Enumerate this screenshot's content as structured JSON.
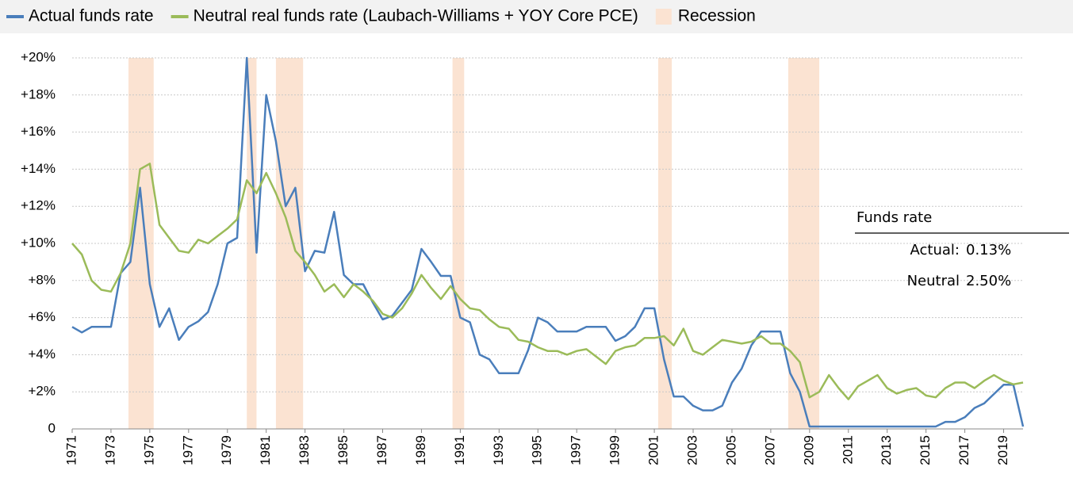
{
  "chart_data": {
    "type": "line",
    "x": [
      1971,
      1971.5,
      1972,
      1972.5,
      1973,
      1973.5,
      1974,
      1974.5,
      1975,
      1975.5,
      1976,
      1976.5,
      1977,
      1977.5,
      1978,
      1978.5,
      1979,
      1979.5,
      1980,
      1980.5,
      1981,
      1981.5,
      1982,
      1982.5,
      1983,
      1983.5,
      1984,
      1984.5,
      1985,
      1985.5,
      1986,
      1986.5,
      1987,
      1987.5,
      1988,
      1988.5,
      1989,
      1989.5,
      1990,
      1990.5,
      1991,
      1991.5,
      1992,
      1992.5,
      1993,
      1993.5,
      1994,
      1994.5,
      1995,
      1995.5,
      1996,
      1996.5,
      1997,
      1997.5,
      1998,
      1998.5,
      1999,
      1999.5,
      2000,
      2000.5,
      2001,
      2001.5,
      2002,
      2002.5,
      2003,
      2003.5,
      2004,
      2004.5,
      2005,
      2005.5,
      2006,
      2006.5,
      2007,
      2007.5,
      2008,
      2008.5,
      2009,
      2009.5,
      2010,
      2010.5,
      2011,
      2011.5,
      2012,
      2012.5,
      2013,
      2013.5,
      2014,
      2014.5,
      2015,
      2015.5,
      2016,
      2016.5,
      2017,
      2017.5,
      2018,
      2018.5,
      2019,
      2019.5,
      2020
    ],
    "series": [
      {
        "name": "Actual funds rate",
        "color": "#4a7ebb",
        "values": [
          5.5,
          5.2,
          5.5,
          5.5,
          5.5,
          8.4,
          9.0,
          13.0,
          7.8,
          5.5,
          6.5,
          4.8,
          5.5,
          5.8,
          6.3,
          7.8,
          10.0,
          10.3,
          20.0,
          9.5,
          18.0,
          15.5,
          12.0,
          13.0,
          8.5,
          9.6,
          9.5,
          11.7,
          8.3,
          7.8,
          7.8,
          6.8,
          5.9,
          6.1,
          6.8,
          7.5,
          9.7,
          9.0,
          8.25,
          8.25,
          6.0,
          5.75,
          4.0,
          3.75,
          3.0,
          3.0,
          3.0,
          4.25,
          6.0,
          5.75,
          5.25,
          5.25,
          5.25,
          5.5,
          5.5,
          5.5,
          4.75,
          5.0,
          5.5,
          6.5,
          6.5,
          3.75,
          1.75,
          1.75,
          1.25,
          1.0,
          1.0,
          1.25,
          2.5,
          3.25,
          4.5,
          5.25,
          5.25,
          5.25,
          3.0,
          2.0,
          0.13,
          0.13,
          0.13,
          0.13,
          0.13,
          0.13,
          0.13,
          0.13,
          0.13,
          0.13,
          0.13,
          0.13,
          0.13,
          0.13,
          0.38,
          0.38,
          0.63,
          1.13,
          1.38,
          1.88,
          2.38,
          2.38,
          0.13
        ]
      },
      {
        "name": "Neutral real funds rate (Laubach-Williams + YOY Core PCE)",
        "color": "#9bbb59",
        "values": [
          10.0,
          9.4,
          8.0,
          7.5,
          7.4,
          8.4,
          10.0,
          14.0,
          14.3,
          11.0,
          10.3,
          9.6,
          9.5,
          10.2,
          10.0,
          10.4,
          10.8,
          11.3,
          13.4,
          12.7,
          13.8,
          12.7,
          11.4,
          9.6,
          9.0,
          8.3,
          7.4,
          7.8,
          7.1,
          7.8,
          7.4,
          6.9,
          6.2,
          6.0,
          6.5,
          7.3,
          8.3,
          7.6,
          7.0,
          7.7,
          7.0,
          6.5,
          6.4,
          5.9,
          5.5,
          5.4,
          4.8,
          4.7,
          4.4,
          4.2,
          4.2,
          4.0,
          4.2,
          4.3,
          3.9,
          3.5,
          4.2,
          4.4,
          4.5,
          4.9,
          4.9,
          5.0,
          4.5,
          5.4,
          4.2,
          4.0,
          4.4,
          4.8,
          4.7,
          4.6,
          4.7,
          5.0,
          4.6,
          4.6,
          4.2,
          3.6,
          1.7,
          2.0,
          2.9,
          2.2,
          1.6,
          2.3,
          2.6,
          2.9,
          2.2,
          1.9,
          2.1,
          2.2,
          1.8,
          1.7,
          2.2,
          2.5,
          2.5,
          2.2,
          2.6,
          2.9,
          2.6,
          2.4,
          2.5
        ]
      }
    ],
    "recession": {
      "name": "Recession",
      "color": "#fbe3d2",
      "periods": [
        [
          1973.9,
          1975.2
        ],
        [
          1980.0,
          1980.5
        ],
        [
          1981.5,
          1982.9
        ],
        [
          1990.6,
          1991.2
        ],
        [
          2001.2,
          2001.9
        ],
        [
          2007.9,
          2009.5
        ]
      ]
    },
    "xlim": [
      1971,
      2020
    ],
    "xticks": [
      1971,
      1973,
      1975,
      1977,
      1979,
      1981,
      1983,
      1985,
      1987,
      1989,
      1991,
      1993,
      1995,
      1997,
      1999,
      2001,
      2003,
      2005,
      2007,
      2009,
      2011,
      2013,
      2015,
      2017,
      2019
    ],
    "ylim": [
      0,
      20
    ],
    "yticks": [
      0,
      {
        "value": 2,
        "label": "+2%"
      },
      {
        "value": 4,
        "label": "+4%"
      },
      {
        "value": 6,
        "label": "+6%"
      },
      {
        "value": 8,
        "label": "+8%"
      },
      {
        "value": 10,
        "label": "+10%"
      },
      {
        "value": 12,
        "label": "+12%"
      },
      {
        "value": 14,
        "label": "+14%"
      },
      {
        "value": 16,
        "label": "+16%"
      },
      {
        "value": 18,
        "label": "+18%"
      },
      {
        "value": 20,
        "label": "+20%"
      }
    ],
    "grid": true,
    "annotation": {
      "title": "Funds rate",
      "rows": [
        {
          "label": "Actual:",
          "value": "0.13%"
        },
        {
          "label": "Neutral",
          "value": "2.50%"
        }
      ]
    }
  }
}
